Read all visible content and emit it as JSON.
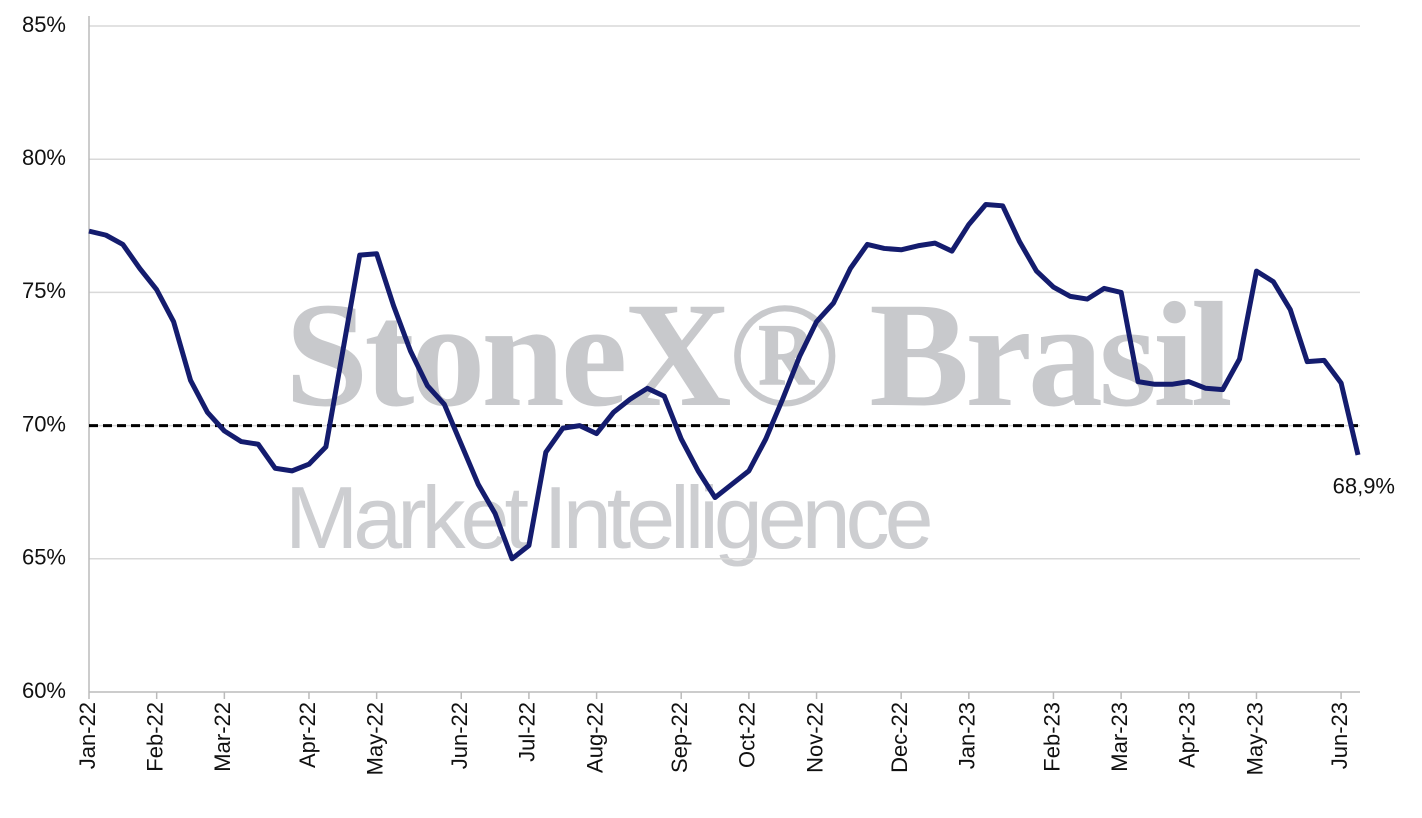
{
  "chart_data": {
    "type": "line",
    "watermark": [
      "StoneX® Brasil",
      "Market Intelligence"
    ],
    "categories": [
      "Jan-22",
      null,
      null,
      null,
      "Feb-22",
      null,
      null,
      null,
      "Mar-22",
      null,
      null,
      null,
      null,
      "Apr-22",
      null,
      null,
      null,
      "May-22",
      null,
      null,
      null,
      null,
      "Jun-22",
      null,
      null,
      null,
      "Jul-22",
      null,
      null,
      null,
      "Aug-22",
      null,
      null,
      null,
      null,
      "Sep-22",
      null,
      null,
      null,
      "Oct-22",
      null,
      null,
      null,
      "Nov-22",
      null,
      null,
      null,
      null,
      "Dec-22",
      null,
      null,
      null,
      "Jan-23",
      null,
      null,
      null,
      null,
      "Feb-23",
      null,
      null,
      null,
      "Mar-23",
      null,
      null,
      null,
      "Apr-23",
      null,
      null,
      null,
      "May-23",
      null,
      null,
      null,
      null,
      "Jun-23",
      null
    ],
    "series": [
      {
        "color": "#141c6e",
        "values": [
          77.3,
          77.15,
          76.8,
          75.9,
          75.1,
          73.9,
          71.7,
          70.5,
          69.8,
          69.4,
          69.3,
          68.4,
          68.3,
          68.55,
          69.2,
          72.8,
          76.4,
          76.45,
          74.5,
          72.8,
          71.5,
          70.8,
          69.3,
          67.8,
          66.7,
          65.0,
          65.5,
          69.0,
          69.9,
          70.0,
          69.7,
          70.5,
          71.0,
          71.4,
          71.1,
          69.5,
          68.3,
          67.3,
          67.8,
          68.3,
          69.5,
          71.0,
          72.6,
          73.9,
          74.6,
          75.9,
          76.8,
          76.65,
          76.6,
          76.75,
          76.85,
          76.55,
          77.55,
          78.3,
          78.25,
          76.9,
          75.8,
          75.2,
          74.85,
          74.75,
          75.15,
          75.0,
          71.65,
          71.55,
          71.55,
          71.65,
          71.4,
          71.35,
          72.5,
          75.8,
          75.4,
          74.35,
          72.4,
          72.45,
          71.6,
          68.9
        ],
        "value_labels": [
          null,
          null,
          null,
          null,
          null,
          null,
          null,
          null,
          null,
          null,
          null,
          null,
          null,
          null,
          null,
          null,
          null,
          null,
          null,
          null,
          null,
          null,
          null,
          null,
          null,
          null,
          null,
          null,
          null,
          null,
          null,
          null,
          null,
          null,
          null,
          null,
          null,
          null,
          null,
          null,
          null,
          null,
          null,
          null,
          null,
          null,
          null,
          null,
          null,
          null,
          null,
          null,
          null,
          null,
          null,
          null,
          null,
          null,
          null,
          null,
          null,
          null,
          null,
          null,
          null,
          null,
          null,
          null,
          null,
          null,
          null,
          null,
          null,
          null,
          null,
          "68,9%"
        ]
      }
    ],
    "reference_line": 70,
    "ylim": [
      60,
      85
    ],
    "yticks": [
      {
        "value": 60,
        "label": "60%"
      },
      {
        "value": 65,
        "label": "65%"
      },
      {
        "value": 70,
        "label": "70%"
      },
      {
        "value": 75,
        "label": "75%"
      },
      {
        "value": 80,
        "label": "80%"
      },
      {
        "value": 85,
        "label": "85%"
      }
    ],
    "grid": true
  }
}
